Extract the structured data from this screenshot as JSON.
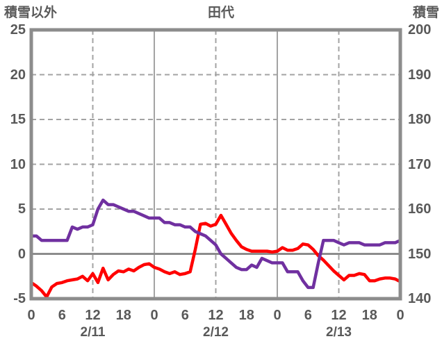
{
  "header": {
    "left_axis_title": "積雪以外",
    "title": "田代",
    "right_axis_title": "積雪"
  },
  "colors": {
    "red_series": "#ff0000",
    "purple_series": "#7030a0",
    "axis_frame_gray": "#8c8c8c",
    "grid_gray": "#a3a3a3",
    "text_gray": "#595959"
  },
  "chart_data": {
    "type": "line",
    "title": "田代",
    "grid": "on",
    "legend": "none",
    "left_axis": {
      "label": "積雪以外",
      "ticks": [
        25,
        20,
        15,
        10,
        5,
        0,
        -5
      ],
      "range": [
        -5,
        25
      ],
      "zero_line": "solid"
    },
    "right_axis": {
      "label": "積雪",
      "ticks": [
        200,
        190,
        180,
        170,
        160,
        150,
        140
      ],
      "range": [
        140,
        200
      ]
    },
    "x_axis": {
      "range_hours": [
        0,
        72
      ],
      "tick_step_hours": 6,
      "tick_labels": [
        "0",
        "6",
        "12",
        "18",
        "0",
        "6",
        "12",
        "18",
        "0",
        "6",
        "12",
        "18",
        "0"
      ],
      "day_labels": [
        {
          "text": "2/11",
          "center_hour": 12
        },
        {
          "text": "2/12",
          "center_hour": 36
        },
        {
          "text": "2/13",
          "center_hour": 60
        }
      ],
      "gridlines": {
        "dashed_at_hours": [
          12,
          36,
          60
        ],
        "solid_at_hours": [
          24,
          48
        ]
      }
    },
    "series": [
      {
        "name": "積雪以外",
        "axis": "left",
        "color": "#ff0000",
        "unit": "left-axis units",
        "hours_step": 1,
        "values": [
          -3.2,
          -3.6,
          -4.1,
          -4.8,
          -3.7,
          -3.3,
          -3.2,
          -3.0,
          -2.9,
          -2.8,
          -2.5,
          -3.0,
          -2.2,
          -3.2,
          -1.6,
          -2.9,
          -2.3,
          -1.9,
          -2.0,
          -1.7,
          -1.9,
          -1.5,
          -1.2,
          -1.1,
          -1.5,
          -1.7,
          -2.0,
          -2.2,
          -2.0,
          -2.3,
          -2.2,
          -2.0,
          0.5,
          3.3,
          3.4,
          3.1,
          3.3,
          4.3,
          3.3,
          2.3,
          1.5,
          0.8,
          0.5,
          0.3,
          0.3,
          0.3,
          0.3,
          0.2,
          0.3,
          0.7,
          0.4,
          0.4,
          0.6,
          1.1,
          1.0,
          0.5,
          -0.2,
          -0.7,
          -1.3,
          -1.9,
          -2.4,
          -2.9,
          -2.4,
          -2.4,
          -2.2,
          -2.3,
          -3.0,
          -3.0,
          -2.8,
          -2.7,
          -2.7,
          -2.8,
          -3.1
        ]
      },
      {
        "name": "積雪",
        "axis": "right",
        "color": "#7030a0",
        "unit": "cm",
        "hours_step": 1,
        "values": [
          154,
          154,
          153,
          153,
          153,
          153,
          153,
          153,
          156,
          155.5,
          156,
          156,
          156.5,
          160,
          162,
          161,
          161,
          160.5,
          160,
          159.5,
          159.5,
          159,
          158.5,
          158,
          158,
          158,
          157,
          157,
          156.5,
          156.5,
          156,
          156,
          155,
          154.5,
          154,
          153,
          152,
          150,
          149,
          148,
          147,
          146.5,
          146.5,
          147.5,
          147,
          149,
          148.5,
          148,
          148,
          148,
          146,
          146,
          146,
          144,
          142.5,
          142.5,
          148,
          153,
          153,
          153,
          152.5,
          152,
          152.5,
          152.5,
          152.5,
          152,
          152,
          152,
          152,
          152.5,
          152.5,
          152.5,
          153
        ]
      }
    ]
  }
}
